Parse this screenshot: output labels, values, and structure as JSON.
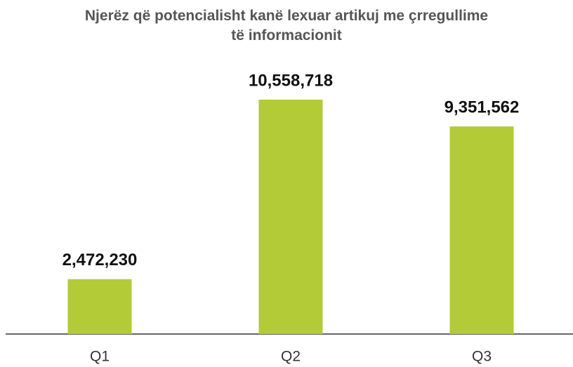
{
  "chart_data": {
    "type": "bar",
    "title": "Njerëz që potencialisht kanë lexuar artikuj me çrregullime të informacionit",
    "categories": [
      "Q1",
      "Q2",
      "Q3"
    ],
    "values": [
      2472230,
      10558718,
      9351562
    ],
    "value_labels": [
      "2,472,230",
      "10,558,718",
      "9,351,562"
    ],
    "color": "#b2cb36"
  }
}
